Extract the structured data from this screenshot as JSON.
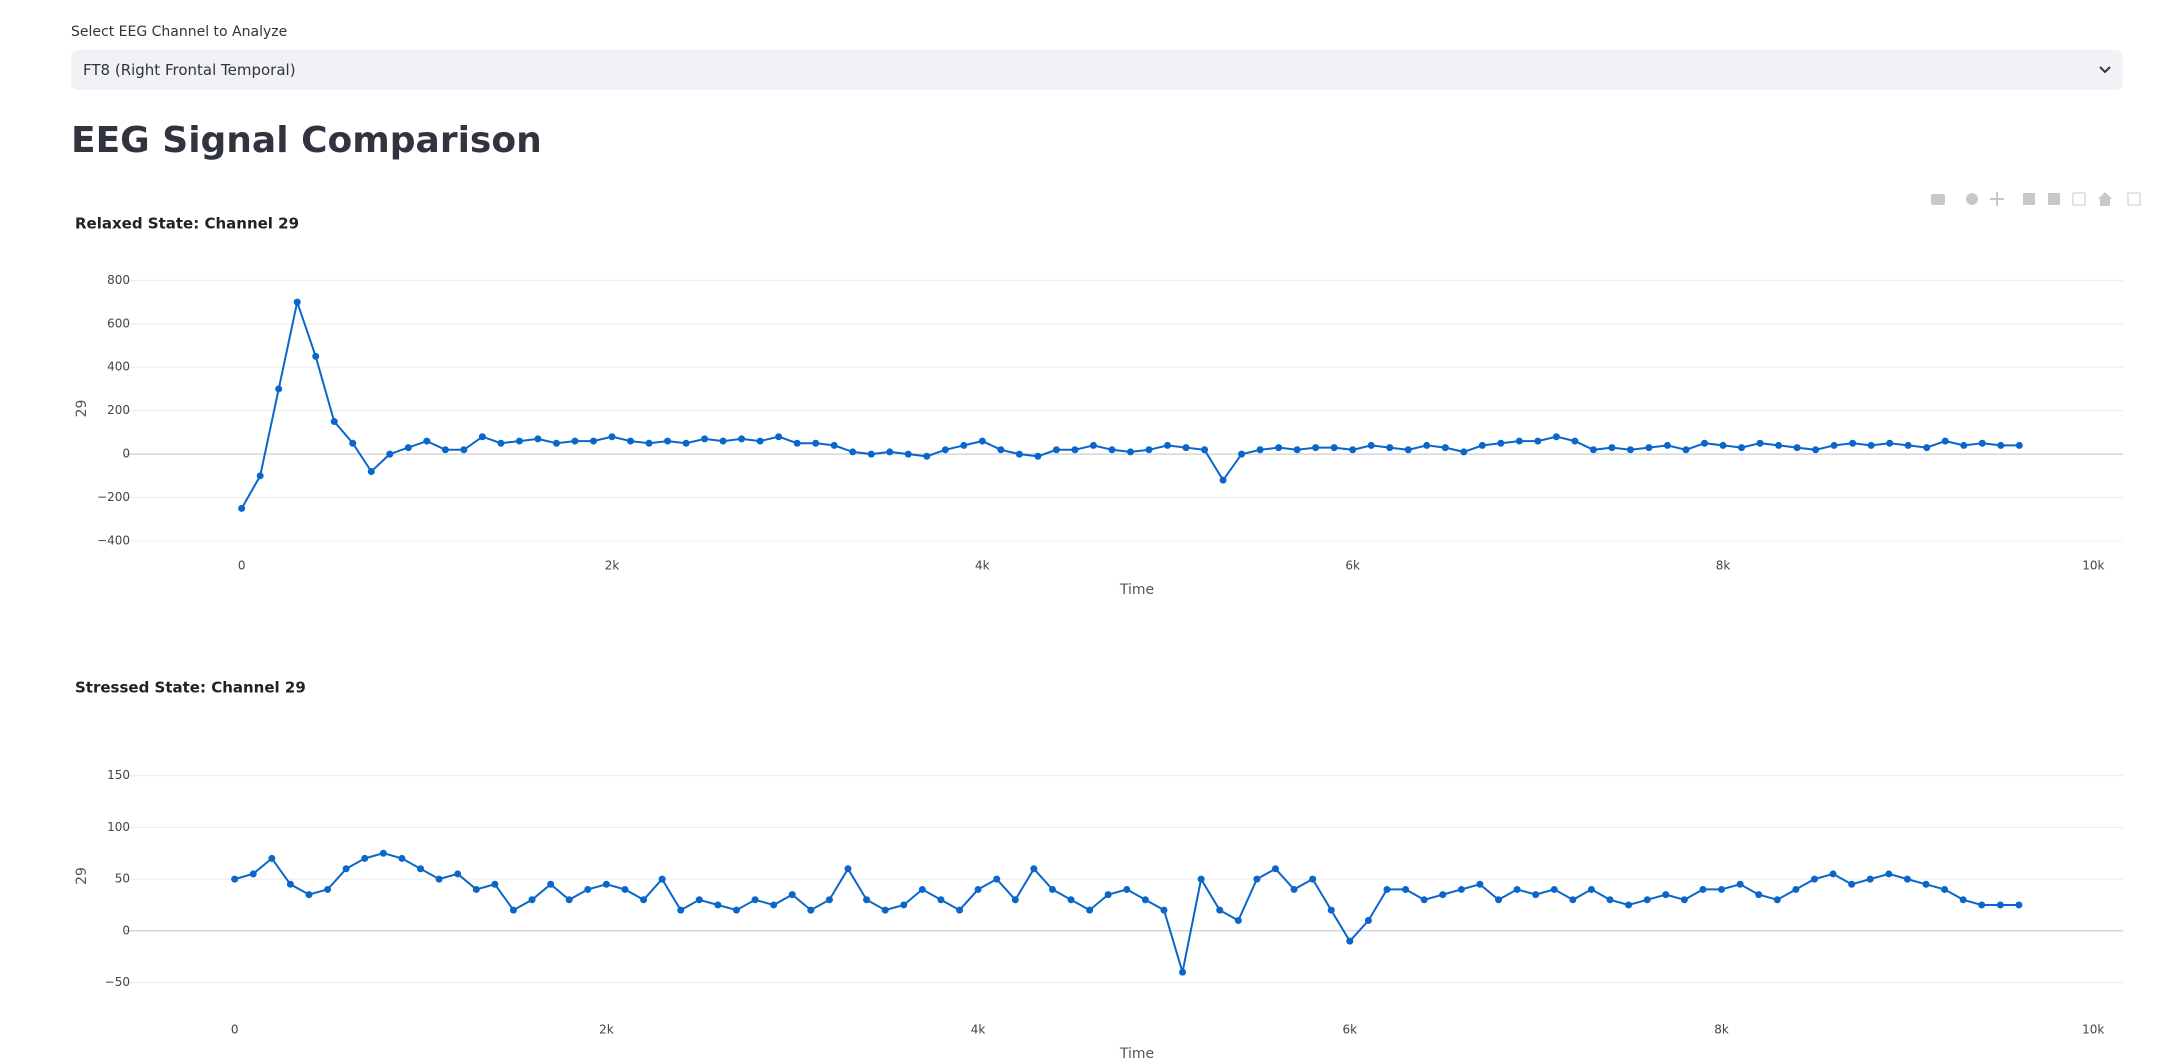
{
  "select": {
    "label": "Select EEG Channel to Analyze",
    "value": "FT8 (Right Frontal Temporal)"
  },
  "heading": "EEG Signal Comparison",
  "chart_data": [
    {
      "type": "line",
      "title": "Relaxed State: Channel 29",
      "x_label": "Time",
      "y_label": "29",
      "color": "#0b66c9",
      "grid": true,
      "x": [
        0,
        100,
        200,
        300,
        400,
        500,
        600,
        700,
        800,
        900,
        1000,
        1100,
        1200,
        1300,
        1400,
        1500,
        1600,
        1700,
        1800,
        1900,
        2000,
        2100,
        2200,
        2300,
        2400,
        2500,
        2600,
        2700,
        2800,
        2900,
        3000,
        3100,
        3200,
        3300,
        3400,
        3500,
        3600,
        3700,
        3800,
        3900,
        4000,
        4100,
        4200,
        4300,
        4400,
        4500,
        4600,
        4700,
        4800,
        4900,
        5000,
        5100,
        5200,
        5300,
        5400,
        5500,
        5600,
        5700,
        5800,
        5900,
        6000,
        6100,
        6200,
        6300,
        6400,
        6500,
        6600,
        6700,
        6800,
        6900,
        7000,
        7100,
        7200,
        7300,
        7400,
        7500,
        7600,
        7700,
        7800,
        7900,
        8000,
        8100,
        8200,
        8300,
        8400,
        8500,
        8600,
        8700,
        8800,
        8900,
        9000,
        9100,
        9200,
        9300,
        9400,
        9500,
        9600
      ],
      "values": [
        -250,
        -100,
        300,
        700,
        450,
        150,
        50,
        -80,
        0,
        30,
        60,
        20,
        20,
        80,
        50,
        60,
        70,
        50,
        60,
        60,
        80,
        60,
        50,
        60,
        50,
        70,
        60,
        70,
        60,
        80,
        50,
        50,
        40,
        10,
        0,
        10,
        0,
        -10,
        20,
        40,
        60,
        20,
        0,
        -10,
        20,
        20,
        40,
        20,
        10,
        20,
        40,
        30,
        20,
        -120,
        0,
        20,
        30,
        20,
        30,
        30,
        20,
        40,
        30,
        20,
        40,
        30,
        10,
        40,
        50,
        60,
        60,
        80,
        60,
        20,
        30,
        20,
        30,
        40,
        20,
        50,
        40,
        30,
        50,
        40,
        30,
        20,
        40,
        50,
        40,
        50,
        40,
        30,
        60,
        40,
        50,
        40,
        40
      ],
      "xlim": [
        -630,
        10160
      ],
      "ylim": [
        -460,
        880
      ],
      "xticks": [
        0,
        {
          "value": 2000,
          "label": "2k"
        },
        {
          "value": 4000,
          "label": "4k"
        },
        {
          "value": 6000,
          "label": "6k"
        },
        {
          "value": 8000,
          "label": "8k"
        },
        {
          "value": 10000,
          "label": "10k"
        }
      ],
      "yticks": [
        {
          "value": -400,
          "label": "−400"
        },
        {
          "value": -200,
          "label": "−200"
        },
        0,
        200,
        400,
        600,
        800
      ]
    },
    {
      "type": "line",
      "title": "Stressed State: Channel 29",
      "x_label": "Time",
      "y_label": "29",
      "color": "#0b66c9",
      "grid": true,
      "x": [
        0,
        100,
        200,
        300,
        400,
        500,
        600,
        700,
        800,
        900,
        1000,
        1100,
        1200,
        1300,
        1400,
        1500,
        1600,
        1700,
        1800,
        1900,
        2000,
        2100,
        2200,
        2300,
        2400,
        2500,
        2600,
        2700,
        2800,
        2900,
        3000,
        3100,
        3200,
        3300,
        3400,
        3500,
        3600,
        3700,
        3800,
        3900,
        4000,
        4100,
        4200,
        4300,
        4400,
        4500,
        4600,
        4700,
        4800,
        4900,
        5000,
        5100,
        5200,
        5300,
        5400,
        5500,
        5600,
        5700,
        5800,
        5900,
        6000,
        6100,
        6200,
        6300,
        6400,
        6500,
        6600,
        6700,
        6800,
        6900,
        7000,
        7100,
        7200,
        7300,
        7400,
        7500,
        7600,
        7700,
        7800,
        7900,
        8000,
        8100,
        8200,
        8300,
        8400,
        8500,
        8600,
        8700,
        8800,
        8900,
        9000,
        9100,
        9200,
        9300,
        9400,
        9500,
        9600
      ],
      "values": [
        50,
        55,
        70,
        45,
        35,
        40,
        60,
        70,
        75,
        70,
        60,
        50,
        55,
        40,
        45,
        20,
        30,
        45,
        30,
        40,
        45,
        40,
        30,
        50,
        20,
        30,
        25,
        20,
        30,
        25,
        35,
        20,
        30,
        60,
        30,
        20,
        25,
        40,
        30,
        20,
        40,
        50,
        30,
        60,
        40,
        30,
        20,
        35,
        40,
        30,
        20,
        -40,
        50,
        20,
        10,
        50,
        60,
        40,
        50,
        20,
        -10,
        10,
        40,
        40,
        30,
        35,
        40,
        45,
        30,
        40,
        35,
        40,
        30,
        40,
        30,
        25,
        30,
        35,
        30,
        40,
        40,
        45,
        35,
        30,
        40,
        50,
        55,
        45,
        50,
        55,
        50,
        45,
        40,
        30,
        25,
        25,
        25
      ],
      "xlim": [
        -590,
        10160
      ],
      "ylim": [
        -64,
        170
      ],
      "xticks": [
        0,
        {
          "value": 2000,
          "label": "2k"
        },
        {
          "value": 4000,
          "label": "4k"
        },
        {
          "value": 6000,
          "label": "6k"
        },
        {
          "value": 8000,
          "label": "8k"
        },
        {
          "value": 10000,
          "label": "10k"
        }
      ],
      "yticks": [
        {
          "value": -50,
          "label": "−50"
        },
        0,
        50,
        100,
        150
      ]
    }
  ]
}
